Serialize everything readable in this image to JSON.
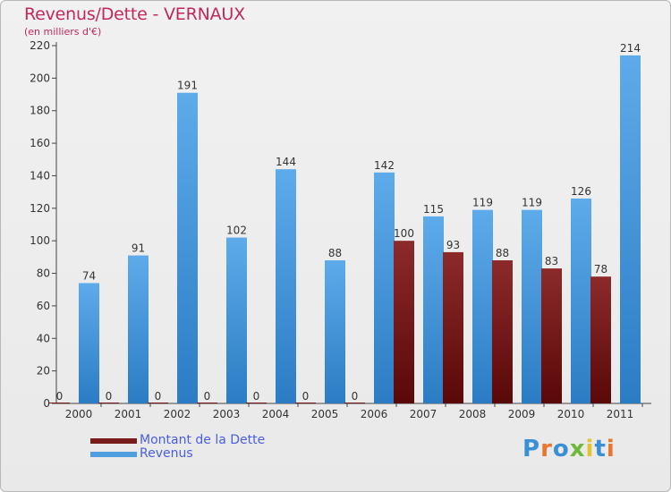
{
  "chart_data": {
    "type": "bar",
    "title": "Revenus/Dette - VERNAUX",
    "subtitle": "(en milliers d'€)",
    "categories": [
      "2000",
      "2001",
      "2002",
      "2003",
      "2004",
      "2005",
      "2006",
      "2007",
      "2008",
      "2009",
      "2010",
      "2011"
    ],
    "series": [
      {
        "name": "Montant de la Dette",
        "color": "#7a1c1c",
        "values": [
          0,
          0,
          0,
          0,
          0,
          0,
          0,
          100,
          93,
          88,
          83,
          78
        ]
      },
      {
        "name": "Revenus",
        "color": "#4f9fe0",
        "values": [
          74,
          91,
          191,
          102,
          144,
          88,
          142,
          115,
          119,
          119,
          126,
          214
        ]
      }
    ],
    "yticks": [
      0,
      20,
      40,
      60,
      80,
      100,
      120,
      140,
      160,
      180,
      200,
      220
    ],
    "ylim": [
      0,
      220
    ],
    "grid": false,
    "legend_position": "bottom-left"
  },
  "logo": {
    "text": "Proxiti",
    "letters": [
      "P",
      "r",
      "o",
      "x",
      "i",
      "t",
      "i"
    ],
    "colors": [
      "#3a8fd6",
      "#e8762c",
      "#3a8fd6",
      "#6fb83a",
      "#e8c22c",
      "#3a8fd6",
      "#e8762c"
    ]
  }
}
